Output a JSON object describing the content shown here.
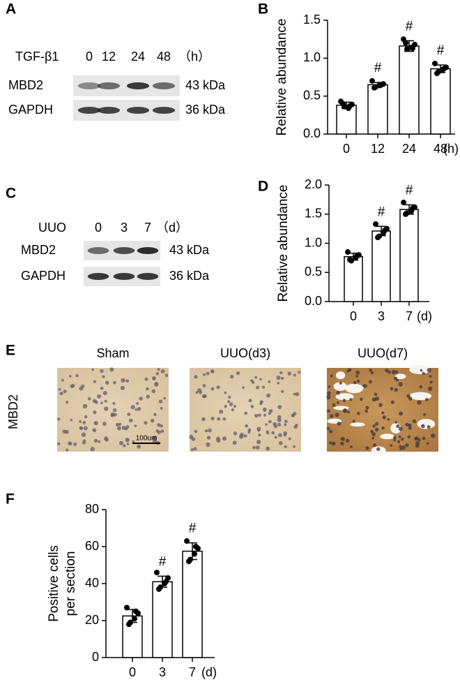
{
  "chart_data": [
    {
      "type": "bar",
      "panel": "B",
      "ylabel": [
        "Relative abundance"
      ],
      "categories": [
        "0",
        "12",
        "24",
        "48"
      ],
      "x_unit": "(h)",
      "values": [
        0.38,
        0.65,
        1.16,
        0.86
      ],
      "errors": [
        0.04,
        0.03,
        0.07,
        0.05
      ],
      "points": [
        [
          0.43,
          0.36,
          0.34,
          0.39,
          0.4,
          0.37
        ],
        [
          0.7,
          0.62,
          0.64,
          0.66,
          0.61,
          0.65
        ],
        [
          1.25,
          1.12,
          1.14,
          1.18,
          1.2,
          1.13
        ],
        [
          0.93,
          0.82,
          0.85,
          0.88,
          0.8,
          0.86
        ]
      ],
      "annotations": [
        null,
        "#",
        "#",
        "#"
      ],
      "color": "#ffffff",
      "ylim": [
        0,
        1.5
      ],
      "yticks": [
        {
          "value": 0,
          "label": "0.0"
        },
        {
          "value": 0.5,
          "label": "0.5"
        },
        {
          "value": 1,
          "label": "1.0"
        },
        {
          "value": 1.5,
          "label": "1.5"
        }
      ]
    },
    {
      "type": "bar",
      "panel": "D",
      "ylabel": [
        "Relative abundance"
      ],
      "categories": [
        "0",
        "3",
        "7"
      ],
      "x_unit": "(d)",
      "values": [
        0.77,
        1.21,
        1.58
      ],
      "errors": [
        0.06,
        0.08,
        0.08
      ],
      "points": [
        [
          0.85,
          0.7,
          0.75,
          0.8,
          0.72,
          0.78
        ],
        [
          1.33,
          1.12,
          1.18,
          1.25,
          1.1,
          1.22
        ],
        [
          1.7,
          1.52,
          1.55,
          1.62,
          1.5,
          1.6
        ]
      ],
      "annotations": [
        null,
        "#",
        "#"
      ],
      "color": "#ffffff",
      "ylim": [
        0,
        2
      ],
      "yticks": [
        {
          "value": 0,
          "label": "0.0"
        },
        {
          "value": 0.5,
          "label": "0.5"
        },
        {
          "value": 1,
          "label": "1.0"
        },
        {
          "value": 1.5,
          "label": "1.5"
        },
        {
          "value": 2,
          "label": "2.0"
        }
      ]
    },
    {
      "type": "bar",
      "panel": "F",
      "ylabel": [
        "Positive cells",
        "per section"
      ],
      "categories": [
        "0",
        "3",
        "7"
      ],
      "x_unit": "(d)",
      "values": [
        22.5,
        41,
        57.5
      ],
      "errors": [
        3.5,
        3,
        4.5
      ],
      "points": [
        [
          27,
          19,
          21,
          24,
          18,
          25
        ],
        [
          46,
          38,
          40,
          43,
          37,
          41
        ],
        [
          63,
          53,
          56,
          59,
          52,
          60
        ]
      ],
      "annotations": [
        null,
        "#",
        "#"
      ],
      "color": "#ffffff",
      "ylim": [
        0,
        80
      ],
      "yticks": [
        0,
        20,
        40,
        60,
        80
      ]
    }
  ],
  "blots": [
    {
      "panel": "A",
      "treatment": "TGF-β1",
      "lanes": [
        "0",
        "12",
        "24",
        "48"
      ],
      "unit": "（h）",
      "rows": [
        {
          "protein": "MBD2",
          "size": "43 kDa"
        },
        {
          "protein": "GAPDH",
          "size": "36 kDa"
        }
      ]
    },
    {
      "panel": "C",
      "treatment": "UUO",
      "lanes": [
        "0",
        "3",
        "7"
      ],
      "unit": "（d）",
      "rows": [
        {
          "protein": "MBD2",
          "size": "43 kDa"
        },
        {
          "protein": "GAPDH",
          "size": "36 kDa"
        }
      ]
    }
  ],
  "histology": {
    "panel": "E",
    "stain": "MBD2",
    "images": [
      "Sham",
      "UUO(d3)",
      "UUO(d7)"
    ],
    "scale_bar": "100um"
  }
}
